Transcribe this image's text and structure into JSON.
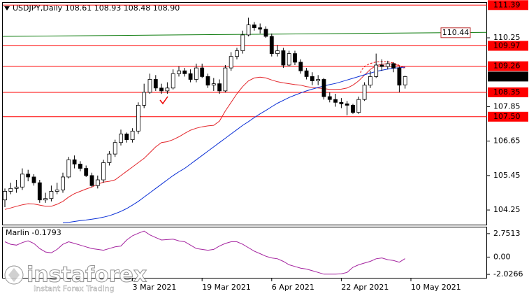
{
  "chart_data": {
    "type": "candlestick",
    "header": {
      "symbol": "USDJPY,Daily",
      "open": "108.61",
      "high": "108.93",
      "low": "108.48",
      "close": "108.90"
    },
    "categories": [
      null,
      null,
      null,
      null,
      null,
      null,
      null,
      null,
      null,
      null,
      null,
      null,
      null,
      null,
      null,
      null,
      null,
      null,
      null,
      null,
      null,
      null,
      "3 Mar 2021",
      null,
      null,
      null,
      null,
      null,
      null,
      null,
      null,
      null,
      null,
      null,
      "19 Mar 2021",
      null,
      null,
      null,
      null,
      null,
      null,
      null,
      null,
      null,
      null,
      null,
      "6 Apr 2021",
      null,
      null,
      null,
      null,
      null,
      null,
      null,
      null,
      null,
      null,
      null,
      "22 Apr 2021",
      null,
      null,
      null,
      null,
      null,
      null,
      null,
      null,
      null,
      null,
      null,
      "10 May 2021"
    ],
    "open": [
      104.6,
      104.9,
      105.0,
      105.05,
      105.5,
      105.4,
      105.2,
      104.6,
      104.65,
      104.9,
      104.95,
      105.4,
      106.0,
      105.85,
      105.7,
      105.45,
      105.1,
      105.3,
      105.9,
      106.2,
      106.6,
      106.9,
      106.7,
      107.0,
      107.9,
      108.35,
      108.8,
      108.5,
      108.4,
      108.5,
      109.0,
      109.1,
      109.0,
      108.8,
      109.2,
      108.9,
      108.6,
      108.65,
      108.4,
      109.2,
      109.6,
      109.8,
      110.35,
      110.7,
      110.6,
      110.55,
      110.3,
      109.7,
      109.8,
      109.3,
      109.7,
      109.4,
      109.1,
      108.9,
      108.75,
      108.8,
      108.2,
      108.1,
      108.0,
      107.95,
      107.9,
      107.65,
      108.1,
      108.6,
      108.9,
      109.3,
      109.25,
      109.35,
      109.2,
      108.61,
      null
    ],
    "high": [
      105.0,
      105.2,
      105.3,
      105.7,
      105.65,
      105.5,
      105.3,
      104.85,
      105.1,
      105.2,
      105.55,
      106.1,
      106.15,
      105.95,
      105.8,
      105.55,
      105.45,
      106.0,
      106.3,
      106.7,
      107.05,
      106.95,
      107.1,
      108.0,
      108.65,
      109.0,
      108.95,
      108.65,
      108.7,
      109.15,
      109.25,
      109.2,
      109.15,
      109.35,
      109.35,
      109.0,
      108.85,
      108.8,
      109.3,
      109.75,
      109.9,
      110.5,
      110.95,
      110.8,
      110.75,
      110.65,
      110.4,
      110.0,
      109.9,
      109.8,
      109.8,
      109.5,
      109.2,
      109.05,
      108.95,
      108.85,
      108.35,
      108.3,
      108.15,
      108.05,
      107.95,
      108.2,
      108.7,
      109.1,
      109.7,
      109.5,
      109.45,
      109.4,
      109.25,
      108.93,
      null
    ],
    "low": [
      104.35,
      104.8,
      104.85,
      104.95,
      105.25,
      105.1,
      104.5,
      104.5,
      104.55,
      104.8,
      104.85,
      105.35,
      105.7,
      105.6,
      105.4,
      105.05,
      105.0,
      105.2,
      105.8,
      106.1,
      106.5,
      106.6,
      106.6,
      106.9,
      107.8,
      108.3,
      108.4,
      108.3,
      108.3,
      108.45,
      108.9,
      108.9,
      108.7,
      108.7,
      108.85,
      108.5,
      108.4,
      108.3,
      108.35,
      109.1,
      109.5,
      109.7,
      110.3,
      110.5,
      110.4,
      110.25,
      109.6,
      109.6,
      109.2,
      109.25,
      109.3,
      109.0,
      108.8,
      108.6,
      108.6,
      108.1,
      108.0,
      107.85,
      107.8,
      107.55,
      107.6,
      107.6,
      108.05,
      108.5,
      108.85,
      109.1,
      109.15,
      109.05,
      108.35,
      108.48,
      null
    ],
    "close": [
      104.9,
      105.0,
      105.05,
      105.5,
      105.4,
      105.2,
      104.6,
      104.65,
      104.9,
      104.95,
      105.4,
      106.0,
      105.85,
      105.7,
      105.45,
      105.1,
      105.3,
      105.9,
      106.2,
      106.6,
      106.9,
      106.7,
      107.0,
      107.9,
      108.35,
      108.8,
      108.5,
      108.4,
      108.5,
      109.0,
      109.1,
      109.0,
      108.8,
      109.2,
      108.9,
      108.6,
      108.65,
      108.4,
      109.2,
      109.6,
      109.8,
      110.35,
      110.7,
      110.6,
      110.55,
      110.3,
      109.7,
      109.8,
      109.3,
      109.7,
      109.4,
      109.1,
      108.9,
      108.75,
      108.8,
      108.2,
      108.1,
      108.0,
      107.95,
      107.9,
      107.65,
      108.1,
      108.6,
      108.9,
      109.3,
      109.25,
      109.35,
      109.2,
      108.6,
      108.9,
      null
    ],
    "up_color": "#ffffff",
    "down_color": "#000000",
    "series": [
      {
        "color": "#e3262b",
        "values": [
          104.27,
          104.32,
          104.38,
          104.43,
          104.47,
          104.46,
          104.42,
          104.38,
          104.38,
          104.45,
          104.55,
          104.7,
          104.82,
          104.9,
          104.98,
          105.05,
          105.15,
          105.22,
          105.25,
          105.3,
          105.45,
          105.6,
          105.75,
          105.9,
          106.05,
          106.25,
          106.45,
          106.6,
          106.63,
          106.7,
          106.8,
          106.92,
          107.03,
          107.1,
          107.15,
          107.18,
          107.2,
          107.35,
          107.7,
          108.0,
          108.3,
          108.55,
          108.75,
          108.85,
          108.88,
          108.85,
          108.78,
          108.72,
          108.68,
          108.65,
          108.62,
          108.6,
          108.55,
          108.52,
          108.5,
          108.48,
          108.45,
          108.45,
          108.46,
          108.5,
          108.6,
          108.75,
          108.95,
          109.15,
          109.28,
          109.33,
          109.35,
          109.33,
          109.28,
          109.2,
          null
        ]
      },
      {
        "color": "#0a2fd6",
        "values": [
          null,
          null,
          null,
          null,
          null,
          null,
          null,
          null,
          null,
          null,
          103.8,
          103.82,
          103.85,
          103.88,
          103.9,
          103.93,
          103.96,
          104.0,
          104.05,
          104.12,
          104.2,
          104.3,
          104.42,
          104.55,
          104.7,
          104.85,
          105.0,
          105.15,
          105.3,
          105.45,
          105.58,
          105.7,
          105.85,
          106.0,
          106.15,
          106.3,
          106.45,
          106.6,
          106.75,
          106.9,
          107.05,
          107.2,
          107.33,
          107.47,
          107.6,
          107.72,
          107.85,
          107.97,
          108.07,
          108.17,
          108.25,
          108.33,
          108.4,
          108.46,
          108.52,
          108.57,
          108.62,
          108.66,
          108.72,
          108.78,
          108.84,
          108.9,
          108.96,
          109.02,
          109.08,
          109.12,
          109.16,
          109.19,
          109.21,
          109.23,
          null
        ]
      }
    ],
    "ylim": [
      103.74,
      111.47
    ],
    "yticks": [
      110.25,
      107.85,
      106.65,
      105.45,
      104.25
    ],
    "levels": {
      "color": "#ff0000",
      "values": [
        111.39,
        109.97,
        109.26,
        108.35,
        {
          "value": 107.5,
          "label": "107.50"
        }
      ]
    },
    "last_price": {
      "value": 108.9,
      "label": "108.90"
    },
    "trendline": {
      "color": "#0b7a0b",
      "start": 110.3,
      "end": 110.44
    },
    "oscillator": {
      "name": "Marlin",
      "color": "#a4239f",
      "values": [
        1.8,
        1.5,
        1.4,
        1.7,
        1.9,
        1.6,
        1.0,
        0.6,
        0.5,
        0.9,
        1.5,
        1.8,
        1.6,
        1.4,
        1.2,
        1.0,
        0.9,
        0.8,
        1.0,
        1.2,
        1.3,
        2.0,
        2.5,
        2.8,
        3.05,
        2.6,
        2.3,
        2.0,
        2.05,
        2.1,
        1.9,
        1.8,
        1.4,
        1.0,
        0.9,
        0.8,
        0.9,
        1.3,
        1.6,
        1.8,
        1.8,
        1.5,
        1.1,
        0.7,
        0.4,
        0.1,
        -0.1,
        -0.2,
        -0.5,
        -0.9,
        -1.1,
        -1.3,
        -1.4,
        -1.6,
        -1.8,
        -2.0,
        -2.0,
        -2.0,
        -1.95,
        -1.8,
        -1.2,
        -0.9,
        -0.7,
        -0.5,
        -0.2,
        -0.1,
        -0.3,
        -0.4,
        -0.6,
        -0.1793,
        null
      ],
      "ylim": [
        -2.43,
        3.48
      ],
      "yticks": [
        2.7513,
        {
          "value": 0,
          "label": "0.00"
        },
        -2.0266
      ]
    },
    "watermark": {
      "brand": "instaforex",
      "tagline": "Instant Forex Trading"
    }
  }
}
